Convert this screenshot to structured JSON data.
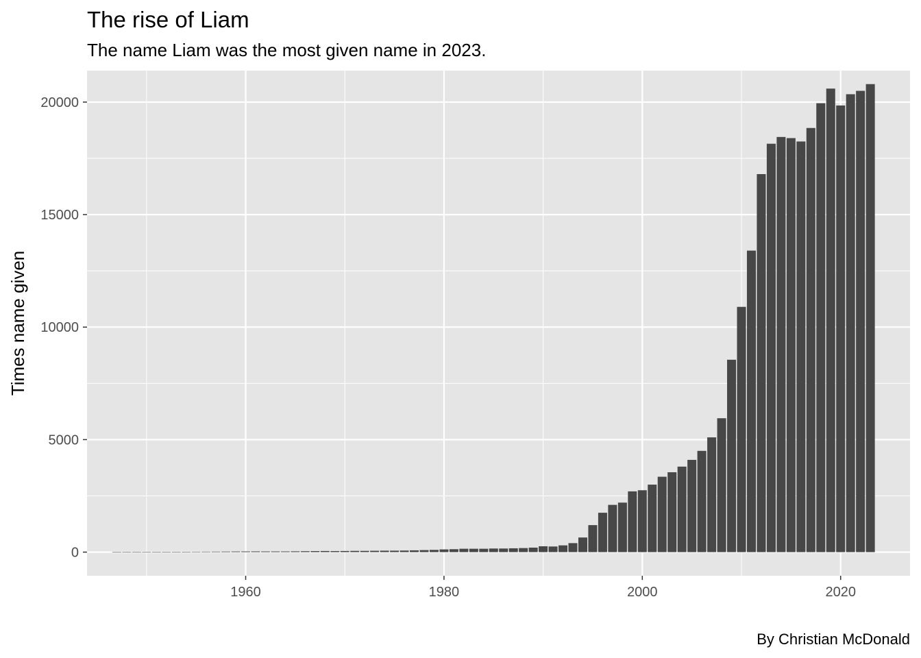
{
  "chart_data": {
    "type": "bar",
    "title": "The rise of Liam",
    "subtitle": "The name Liam was the most given name in 2023.",
    "caption": "By Christian McDonald",
    "xlabel": "",
    "ylabel": "Times name given",
    "xlim": [
      1944,
      2027
    ],
    "ylim": [
      -1050,
      21400
    ],
    "x_ticks": [
      1960,
      1980,
      2000,
      2020
    ],
    "x_tick_labels": [
      "1960",
      "1980",
      "2000",
      "2020"
    ],
    "y_ticks": [
      0,
      5000,
      10000,
      15000,
      20000
    ],
    "y_tick_labels": [
      "0",
      "5000",
      "10000",
      "15000",
      "20000"
    ],
    "grid": true,
    "legend": "none",
    "colors": {
      "bar": "#474747",
      "panel": "#e5e5e5",
      "grid": "#ffffff",
      "text": "#4d4d4d"
    },
    "x": [
      1947,
      1948,
      1949,
      1950,
      1951,
      1952,
      1953,
      1954,
      1955,
      1956,
      1957,
      1958,
      1959,
      1960,
      1961,
      1962,
      1963,
      1964,
      1965,
      1966,
      1967,
      1968,
      1969,
      1970,
      1971,
      1972,
      1973,
      1974,
      1975,
      1976,
      1977,
      1978,
      1979,
      1980,
      1981,
      1982,
      1983,
      1984,
      1985,
      1986,
      1987,
      1988,
      1989,
      1990,
      1991,
      1992,
      1993,
      1994,
      1995,
      1996,
      1997,
      1998,
      1999,
      2000,
      2001,
      2002,
      2003,
      2004,
      2005,
      2006,
      2007,
      2008,
      2009,
      2010,
      2011,
      2012,
      2013,
      2014,
      2015,
      2016,
      2017,
      2018,
      2019,
      2020,
      2021,
      2022,
      2023
    ],
    "values": [
      5,
      6,
      8,
      10,
      12,
      10,
      15,
      15,
      18,
      20,
      22,
      25,
      28,
      30,
      32,
      30,
      30,
      30,
      35,
      40,
      45,
      50,
      45,
      50,
      55,
      55,
      60,
      65,
      65,
      70,
      80,
      90,
      100,
      120,
      130,
      150,
      150,
      150,
      160,
      160,
      170,
      180,
      200,
      260,
      250,
      300,
      400,
      650,
      1200,
      1750,
      2100,
      2200,
      2700,
      2750,
      3000,
      3350,
      3550,
      3800,
      4100,
      4500,
      5100,
      5950,
      8550,
      10900,
      13400,
      16800,
      18150,
      18450,
      18400,
      18250,
      18850,
      19950,
      20600,
      19850,
      20350,
      20500,
      20800
    ]
  }
}
